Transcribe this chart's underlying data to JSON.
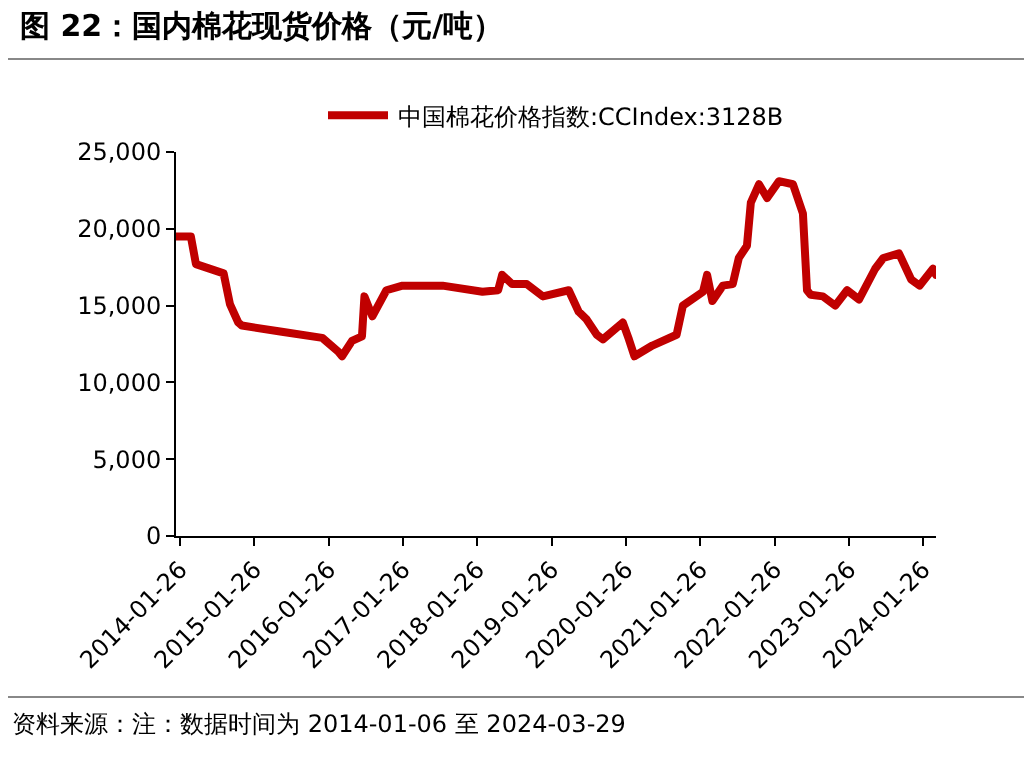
{
  "chart_data": {
    "type": "line",
    "title": "图 22：国内棉花现货价格（元/吨）",
    "annotations": [
      "资料来源：注：数据时间为 2014-01-06 至 2024-03-29"
    ],
    "x": [
      "2014-01-06",
      "2014-03-20",
      "2014-04-14",
      "2014-08-28",
      "2014-09-28",
      "2014-11-08",
      "2014-11-26",
      "2015-06-10",
      "2015-12-26",
      "2016-03-14",
      "2016-04-01",
      "2016-05-20",
      "2016-07-08",
      "2016-07-20",
      "2016-08-28",
      "2016-11-05",
      "2017-01-23",
      "2017-08-08",
      "2018-02-20",
      "2018-05-08",
      "2018-05-28",
      "2018-07-16",
      "2018-09-26",
      "2018-12-14",
      "2019-04-20",
      "2019-06-08",
      "2019-07-17",
      "2019-09-05",
      "2019-10-05",
      "2020-01-11",
      "2020-02-10",
      "2020-03-08",
      "2020-06-04",
      "2020-10-01",
      "2020-11-01",
      "2021-02-08",
      "2021-02-28",
      "2021-03-26",
      "2021-05-16",
      "2021-07-04",
      "2021-08-03",
      "2021-09-12",
      "2021-10-01",
      "2021-11-10",
      "2021-12-20",
      "2022-02-16",
      "2022-04-26",
      "2022-06-14",
      "2022-07-04",
      "2022-07-22",
      "2022-09-20",
      "2022-11-20",
      "2023-01-17",
      "2023-03-17",
      "2023-06-04",
      "2023-07-14",
      "2023-09-29",
      "2023-11-28",
      "2024-01-08",
      "2024-03-14",
      "2024-03-29"
    ],
    "series": [
      {
        "name": "中国棉花价格指数:CCIndex:3128B",
        "color": "#c00000",
        "values": [
          19500,
          19500,
          17700,
          17100,
          15100,
          13900,
          13700,
          13300,
          12900,
          12000,
          11700,
          12700,
          13000,
          15600,
          14300,
          16000,
          16300,
          16300,
          15900,
          16000,
          17000,
          16400,
          16400,
          15600,
          16000,
          14600,
          14100,
          13100,
          12800,
          13900,
          12800,
          11700,
          12400,
          13100,
          15000,
          15900,
          17000,
          15300,
          16300,
          16400,
          18100,
          18900,
          21700,
          22900,
          22000,
          23100,
          22900,
          21000,
          16000,
          15700,
          15600,
          15000,
          16000,
          15400,
          17400,
          18100,
          18400,
          16700,
          16300,
          17400,
          17000
        ]
      }
    ],
    "xlim": [
      "2014-01-06",
      "2024-03-29"
    ],
    "xticks": [
      "2014-01-26",
      "2015-01-26",
      "2016-01-26",
      "2017-01-26",
      "2018-01-26",
      "2019-01-26",
      "2020-01-26",
      "2021-01-26",
      "2022-01-26",
      "2023-01-26",
      "2024-01-26"
    ],
    "ylim": [
      0,
      25000
    ],
    "yticks": [
      0,
      {
        "value": 5000,
        "label": "5,000"
      },
      {
        "value": 10000,
        "label": "10,000"
      },
      {
        "value": 15000,
        "label": "15,000"
      },
      {
        "value": 20000,
        "label": "20,000"
      },
      {
        "value": 25000,
        "label": "25,000"
      }
    ],
    "grid": false,
    "legend": "top",
    "marker": "none",
    "line_style": "solid"
  }
}
